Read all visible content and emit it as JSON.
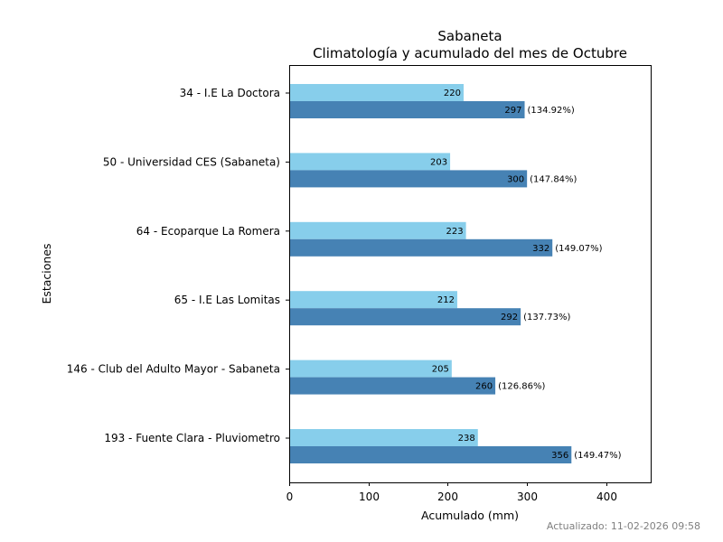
{
  "chart_data": {
    "type": "bar",
    "orientation": "horizontal",
    "title": "Sabaneta",
    "subtitle": "Climatología y acumulado del mes de Octubre",
    "xlabel": "Acumulado (mm)",
    "ylabel": "Estaciones",
    "xlim": [
      0,
      456
    ],
    "xticks": [
      0,
      100,
      200,
      300,
      400
    ],
    "grid": false,
    "categories": [
      "34 - I.E La Doctora",
      "50 - Universidad CES (Sabaneta)",
      "64 - Ecoparque La Romera",
      "65 - I.E Las Lomitas",
      "146 - Club del Adulto Mayor - Sabaneta",
      "193 - Fuente Clara - Pluviometro"
    ],
    "series": [
      {
        "name": "Climatología",
        "color": "#87CEEB",
        "values": [
          220,
          203,
          223,
          212,
          205,
          238
        ]
      },
      {
        "name": "Acumulado",
        "color": "#4682B4",
        "values": [
          297,
          300,
          332,
          292,
          260,
          356
        ]
      }
    ],
    "percent_labels": [
      "(134.92%)",
      "(147.84%)",
      "(149.07%)",
      "(137.73%)",
      "(126.86%)",
      "(149.47%)"
    ]
  },
  "footer": {
    "updated": "Actualizado: 11-02-2026 09:58"
  }
}
